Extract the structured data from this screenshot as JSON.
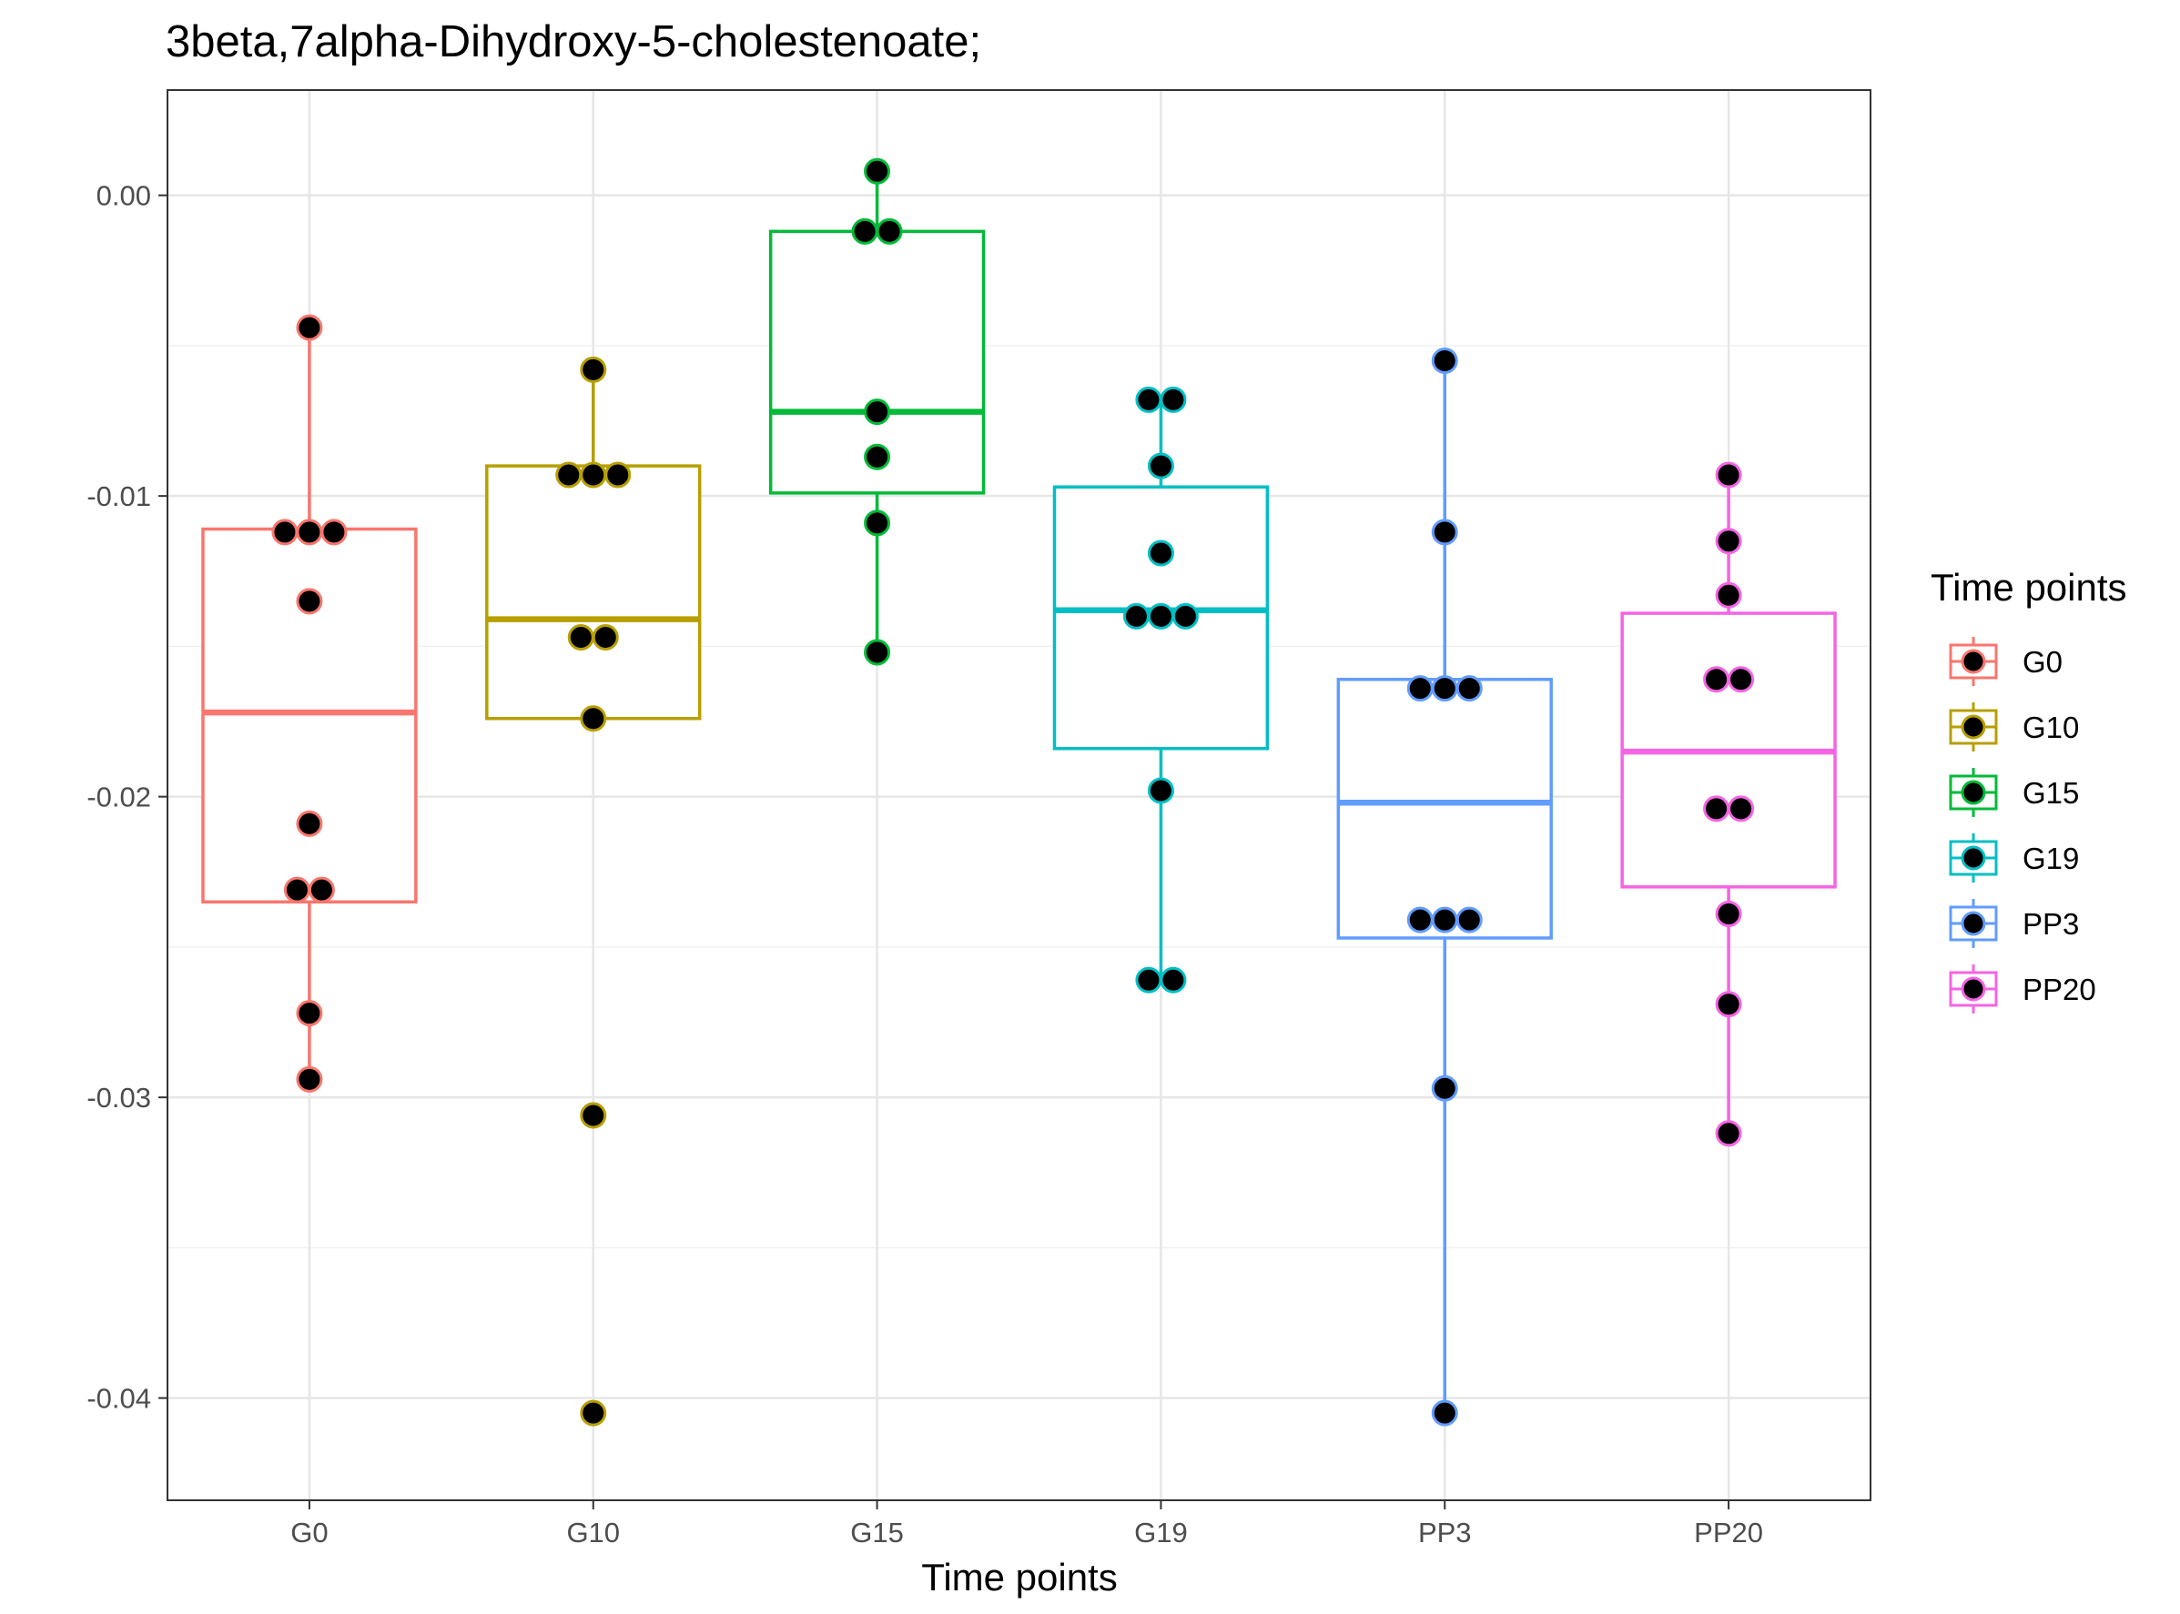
{
  "chart_data": {
    "type": "box",
    "title": "3beta,7alpha-Dihydroxy-5-cholestenoate;",
    "xlabel": "Time points",
    "ylabel": "",
    "ylim": [
      -0.0434,
      0.0035
    ],
    "y_ticks": [
      0.0,
      -0.01,
      -0.02,
      -0.03,
      -0.04
    ],
    "y_tick_labels": [
      "0.00",
      "-0.01",
      "-0.02",
      "-0.03",
      "-0.04"
    ],
    "grid": true,
    "legend": {
      "title": "Time points",
      "position": "right",
      "entries": [
        "G0",
        "G10",
        "G15",
        "G19",
        "PP3",
        "PP20"
      ]
    },
    "categories": [
      "G0",
      "G10",
      "G15",
      "G19",
      "PP3",
      "PP20"
    ],
    "series": [
      {
        "name": "G0",
        "color": "#F8766D",
        "box": {
          "whisker_low": -0.0294,
          "q1": -0.0235,
          "median": -0.0172,
          "q3": -0.0111,
          "whisker_high": -0.0044
        },
        "points": [
          -0.0044,
          -0.0112,
          -0.0112,
          -0.0112,
          -0.0135,
          -0.0209,
          -0.0231,
          -0.0231,
          -0.0272,
          -0.0294
        ]
      },
      {
        "name": "G10",
        "color": "#B79F00",
        "box": {
          "whisker_low": -0.0174,
          "q1": -0.0174,
          "median": -0.0141,
          "q3": -0.009,
          "whisker_high": -0.0058
        },
        "points": [
          -0.0058,
          -0.0093,
          -0.0093,
          -0.0093,
          -0.0147,
          -0.0147,
          -0.0174,
          -0.0306,
          -0.0405
        ]
      },
      {
        "name": "G15",
        "color": "#00BA38",
        "box": {
          "whisker_low": -0.0152,
          "q1": -0.0099,
          "median": -0.0072,
          "q3": -0.0012,
          "whisker_high": 0.0008
        },
        "points": [
          0.0008,
          -0.0012,
          -0.0012,
          -0.0072,
          -0.0087,
          -0.0109,
          -0.0152
        ]
      },
      {
        "name": "G19",
        "color": "#00BFC4",
        "box": {
          "whisker_low": -0.0261,
          "q1": -0.0184,
          "median": -0.0138,
          "q3": -0.0097,
          "whisker_high": -0.0068
        },
        "points": [
          -0.0068,
          -0.0068,
          -0.009,
          -0.0119,
          -0.014,
          -0.014,
          -0.014,
          -0.0198,
          -0.0261,
          -0.0261
        ]
      },
      {
        "name": "PP3",
        "color": "#619CFF",
        "box": {
          "whisker_low": -0.0405,
          "q1": -0.0247,
          "median": -0.0202,
          "q3": -0.0161,
          "whisker_high": -0.0055
        },
        "points": [
          -0.0055,
          -0.0112,
          -0.0164,
          -0.0164,
          -0.0164,
          -0.0241,
          -0.0241,
          -0.0241,
          -0.0297,
          -0.0405
        ]
      },
      {
        "name": "PP20",
        "color": "#F564E3",
        "box": {
          "whisker_low": -0.0312,
          "q1": -0.023,
          "median": -0.0185,
          "q3": -0.0139,
          "whisker_high": -0.0093
        },
        "points": [
          -0.0093,
          -0.0115,
          -0.0133,
          -0.0161,
          -0.0161,
          -0.0204,
          -0.0204,
          -0.0239,
          -0.0269,
          -0.0312
        ]
      }
    ]
  }
}
